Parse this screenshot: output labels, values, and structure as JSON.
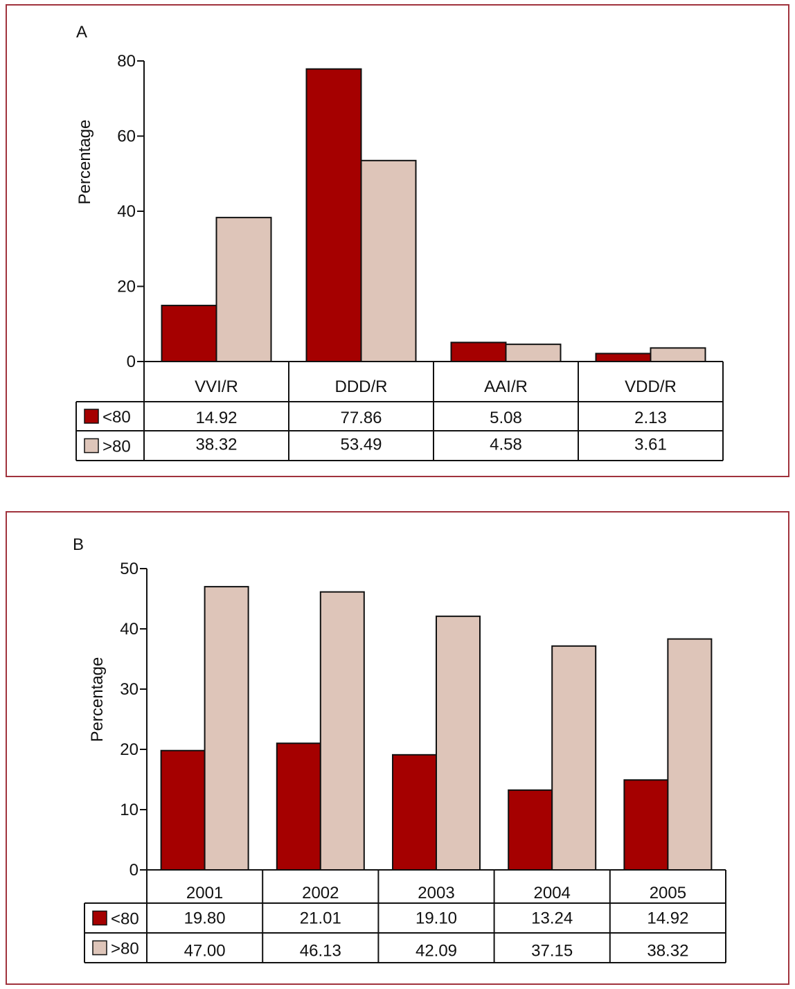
{
  "chart_data": [
    {
      "panel_label": "A",
      "type": "bar",
      "ylabel": "Percentage",
      "ylim": [
        0,
        80
      ],
      "yticks": [
        0,
        20,
        40,
        60,
        80
      ],
      "categories": [
        "VVI/R",
        "DDD/R",
        "AAI/R",
        "VDD/R"
      ],
      "series": [
        {
          "name": "<80",
          "color": "#a50000",
          "values": [
            14.92,
            77.86,
            5.08,
            2.13
          ],
          "labels": [
            "14.92",
            "77.86",
            "5.08",
            "2.13"
          ]
        },
        {
          "name": ">80",
          "color": "#dec5b9",
          "values": [
            38.32,
            53.49,
            4.58,
            3.61
          ],
          "labels": [
            "38.32",
            "53.49",
            "4.58",
            "3.61"
          ]
        }
      ]
    },
    {
      "panel_label": "B",
      "type": "bar",
      "ylabel": "Percentage",
      "ylim": [
        0,
        50
      ],
      "yticks": [
        0,
        10,
        20,
        30,
        40,
        50
      ],
      "categories": [
        "2001",
        "2002",
        "2003",
        "2004",
        "2005"
      ],
      "series": [
        {
          "name": "<80",
          "color": "#a50000",
          "values": [
            19.8,
            21.01,
            19.1,
            13.24,
            14.92
          ],
          "labels": [
            "19.80",
            "21.01",
            "19.10",
            "13.24",
            "14.92"
          ]
        },
        {
          "name": ">80",
          "color": "#dec5b9",
          "values": [
            47.0,
            46.13,
            42.09,
            37.15,
            38.32
          ],
          "labels": [
            "47.00",
            "46.13",
            "42.09",
            "37.15",
            "38.32"
          ]
        }
      ]
    }
  ]
}
